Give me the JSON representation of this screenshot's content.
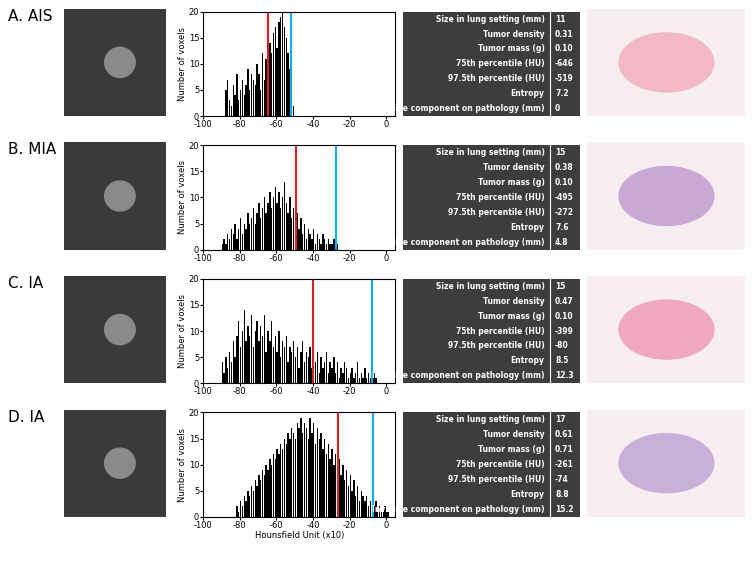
{
  "chart_data": [
    {
      "type": "histogram",
      "ylabel": "Number of voxels",
      "color": "#000000",
      "xlim": [
        -100,
        5
      ],
      "ylim": [
        0,
        20
      ],
      "xticks": [
        -100,
        -80,
        -60,
        -40,
        -20,
        0
      ],
      "yticks": [
        0,
        5,
        10,
        15,
        20
      ],
      "bins": [
        -88,
        -87,
        -86,
        -85,
        -84,
        -83,
        -82,
        -81,
        -80,
        -79,
        -78,
        -77,
        -76,
        -75,
        -74,
        -73,
        -72,
        -71,
        -70,
        -69,
        -68,
        -67,
        -66,
        -65,
        -64,
        -63,
        -62,
        -61,
        -60,
        -59,
        -58,
        -57,
        -56,
        -55,
        -54,
        -53,
        -52,
        -51,
        -50
      ],
      "values": [
        5,
        7,
        3,
        2,
        6,
        4,
        8,
        3,
        5,
        7,
        4,
        6,
        9,
        5,
        8,
        7,
        6,
        10,
        8,
        5,
        12,
        7,
        11,
        9,
        14,
        12,
        16,
        17,
        13,
        18,
        19,
        20,
        17,
        15,
        12,
        9,
        4,
        2
      ],
      "vlines": [
        {
          "x": -64.6,
          "color": "#e02020"
        },
        {
          "x": -51.9,
          "color": "#00b0f0"
        }
      ]
    },
    {
      "type": "histogram",
      "ylabel": "Number of voxels",
      "color": "#000000",
      "xlim": [
        -100,
        5
      ],
      "ylim": [
        0,
        20
      ],
      "xticks": [
        -100,
        -80,
        -60,
        -40,
        -20,
        0
      ],
      "yticks": [
        0,
        5,
        10,
        15,
        20
      ],
      "bins": [
        -90,
        -89,
        -88,
        -87,
        -86,
        -85,
        -84,
        -83,
        -82,
        -81,
        -80,
        -79,
        -78,
        -77,
        -76,
        -75,
        -74,
        -73,
        -72,
        -71,
        -70,
        -69,
        -68,
        -67,
        -66,
        -65,
        -64,
        -63,
        -62,
        -61,
        -60,
        -59,
        -58,
        -57,
        -56,
        -55,
        -54,
        -53,
        -52,
        -51,
        -50,
        -49,
        -48,
        -47,
        -46,
        -45,
        -44,
        -43,
        -42,
        -41,
        -40,
        -39,
        -38,
        -37,
        -36,
        -35,
        -34,
        -33,
        -32,
        -31,
        -30,
        -29,
        -28,
        -27,
        -26
      ],
      "values": [
        1,
        2,
        1,
        3,
        2,
        4,
        3,
        5,
        2,
        4,
        6,
        3,
        5,
        4,
        7,
        5,
        6,
        8,
        5,
        7,
        9,
        6,
        8,
        10,
        7,
        9,
        11,
        8,
        10,
        12,
        9,
        11,
        8,
        10,
        13,
        9,
        7,
        10,
        6,
        8,
        5,
        7,
        4,
        6,
        3,
        5,
        2,
        4,
        3,
        2,
        4,
        1,
        3,
        2,
        1,
        3,
        2,
        1,
        2,
        1,
        1,
        2,
        1,
        1
      ],
      "vlines": [
        {
          "x": -49.5,
          "color": "#e02020"
        },
        {
          "x": -27.2,
          "color": "#00b0f0"
        }
      ]
    },
    {
      "type": "histogram",
      "ylabel": "Number of voxels",
      "color": "#000000",
      "xlim": [
        -100,
        5
      ],
      "ylim": [
        0,
        20
      ],
      "xticks": [
        -100,
        -80,
        -60,
        -40,
        -20,
        0
      ],
      "yticks": [
        0,
        5,
        10,
        15,
        20
      ],
      "bins": [
        -90,
        -89,
        -88,
        -87,
        -86,
        -85,
        -84,
        -83,
        -82,
        -81,
        -80,
        -79,
        -78,
        -77,
        -76,
        -75,
        -74,
        -73,
        -72,
        -71,
        -70,
        -69,
        -68,
        -67,
        -66,
        -65,
        -64,
        -63,
        -62,
        -61,
        -60,
        -59,
        -58,
        -57,
        -56,
        -55,
        -54,
        -53,
        -52,
        -51,
        -50,
        -49,
        -48,
        -47,
        -46,
        -45,
        -44,
        -43,
        -42,
        -41,
        -40,
        -39,
        -38,
        -37,
        -36,
        -35,
        -34,
        -33,
        -32,
        -31,
        -30,
        -29,
        -28,
        -27,
        -26,
        -25,
        -24,
        -23,
        -22,
        -21,
        -20,
        -19,
        -18,
        -17,
        -16,
        -15,
        -14,
        -13,
        -12,
        -11,
        -10,
        -9,
        -8,
        -7,
        -6,
        -5
      ],
      "values": [
        4,
        2,
        5,
        3,
        6,
        4,
        8,
        5,
        9,
        12,
        7,
        10,
        14,
        8,
        11,
        9,
        13,
        7,
        10,
        12,
        8,
        11,
        9,
        13,
        6,
        10,
        8,
        12,
        7,
        9,
        6,
        10,
        5,
        8,
        7,
        9,
        4,
        7,
        6,
        8,
        5,
        7,
        3,
        6,
        8,
        4,
        6,
        5,
        7,
        3,
        5,
        4,
        6,
        2,
        5,
        3,
        4,
        6,
        2,
        4,
        3,
        5,
        2,
        4,
        1,
        3,
        2,
        4,
        3,
        1,
        2,
        3,
        1,
        2,
        4,
        1,
        2,
        1,
        3,
        1,
        2,
        1,
        1,
        2,
        1
      ],
      "vlines": [
        {
          "x": -39.9,
          "color": "#e02020"
        },
        {
          "x": -8.0,
          "color": "#00b0f0"
        }
      ]
    },
    {
      "type": "histogram",
      "xlabel": "Hounsfield Unit (x10)",
      "ylabel": "Number of voxels",
      "color": "#000000",
      "xlim": [
        -100,
        5
      ],
      "ylim": [
        0,
        20
      ],
      "xticks": [
        -100,
        -80,
        -60,
        -40,
        -20,
        0
      ],
      "yticks": [
        0,
        5,
        10,
        15,
        20
      ],
      "bins": [
        -82,
        -81,
        -80,
        -79,
        -78,
        -77,
        -76,
        -75,
        -74,
        -73,
        -72,
        -71,
        -70,
        -69,
        -68,
        -67,
        -66,
        -65,
        -64,
        -63,
        -62,
        -61,
        -60,
        -59,
        -58,
        -57,
        -56,
        -55,
        -54,
        -53,
        -52,
        -51,
        -50,
        -49,
        -48,
        -47,
        -46,
        -45,
        -44,
        -43,
        -42,
        -41,
        -40,
        -39,
        -38,
        -37,
        -36,
        -35,
        -34,
        -33,
        -32,
        -31,
        -30,
        -29,
        -28,
        -27,
        -26,
        -25,
        -24,
        -23,
        -22,
        -21,
        -20,
        -19,
        -18,
        -17,
        -16,
        -15,
        -14,
        -13,
        -12,
        -11,
        -10,
        -9,
        -8,
        -7,
        -6,
        -5,
        -4,
        -3,
        -2,
        -1,
        0,
        1,
        2
      ],
      "values": [
        2,
        1,
        3,
        2,
        4,
        3,
        5,
        4,
        6,
        5,
        7,
        6,
        8,
        7,
        9,
        8,
        10,
        9,
        11,
        10,
        12,
        11,
        13,
        12,
        14,
        13,
        15,
        14,
        16,
        15,
        17,
        16,
        15,
        18,
        17,
        19,
        16,
        18,
        17,
        15,
        19,
        16,
        18,
        14,
        17,
        15,
        16,
        13,
        15,
        12,
        14,
        11,
        13,
        10,
        12,
        9,
        11,
        8,
        10,
        7,
        9,
        6,
        8,
        5,
        7,
        4,
        6,
        3,
        5,
        4,
        3,
        4,
        2,
        3,
        1,
        2,
        3,
        1,
        2,
        1,
        1,
        2,
        1,
        1
      ],
      "vlines": [
        {
          "x": -26.1,
          "color": "#e02020"
        },
        {
          "x": -7.4,
          "color": "#00b0f0"
        }
      ]
    }
  ],
  "panels": [
    {
      "label": "A. AIS",
      "table": {
        "rows": [
          [
            "Size in lung setting (mm)",
            "11"
          ],
          [
            "Tumor density",
            "0.31"
          ],
          [
            "Tumor mass (g)",
            "0.10"
          ],
          [
            "75th percentile (HU)",
            "-646"
          ],
          [
            "97.5th percentile (HU)",
            "-519"
          ],
          [
            "Entropy",
            "7.2"
          ],
          [
            "Invasive component on pathology (mm)",
            "0"
          ]
        ]
      }
    },
    {
      "label": "B. MIA",
      "table": {
        "rows": [
          [
            "Size in lung setting (mm)",
            "15"
          ],
          [
            "Tumor density",
            "0.38"
          ],
          [
            "Tumor mass (g)",
            "0.10"
          ],
          [
            "75th percentile (HU)",
            "-495"
          ],
          [
            "97.5th percentile (HU)",
            "-272"
          ],
          [
            "Entropy",
            "7.6"
          ],
          [
            "Invasive component on pathology (mm)",
            "4.8"
          ]
        ]
      }
    },
    {
      "label": "C. IA",
      "table": {
        "rows": [
          [
            "Size in lung setting (mm)",
            "15"
          ],
          [
            "Tumor density",
            "0.47"
          ],
          [
            "Tumor mass (g)",
            "0.10"
          ],
          [
            "75th percentile (HU)",
            "-399"
          ],
          [
            "97.5th percentile (HU)",
            "-80"
          ],
          [
            "Entropy",
            "8.5"
          ],
          [
            "Invasive component on pathology (mm)",
            "12.3"
          ]
        ]
      }
    },
    {
      "label": "D. IA",
      "table": {
        "rows": [
          [
            "Size in lung setting (mm)",
            "17"
          ],
          [
            "Tumor density",
            "0.61"
          ],
          [
            "Tumor mass (g)",
            "0.71"
          ],
          [
            "75th percentile (HU)",
            "-261"
          ],
          [
            "97.5th percentile (HU)",
            "-74"
          ],
          [
            "Entropy",
            "8.8"
          ],
          [
            "Invasive component on pathology (mm)",
            "15.2"
          ]
        ]
      }
    }
  ]
}
